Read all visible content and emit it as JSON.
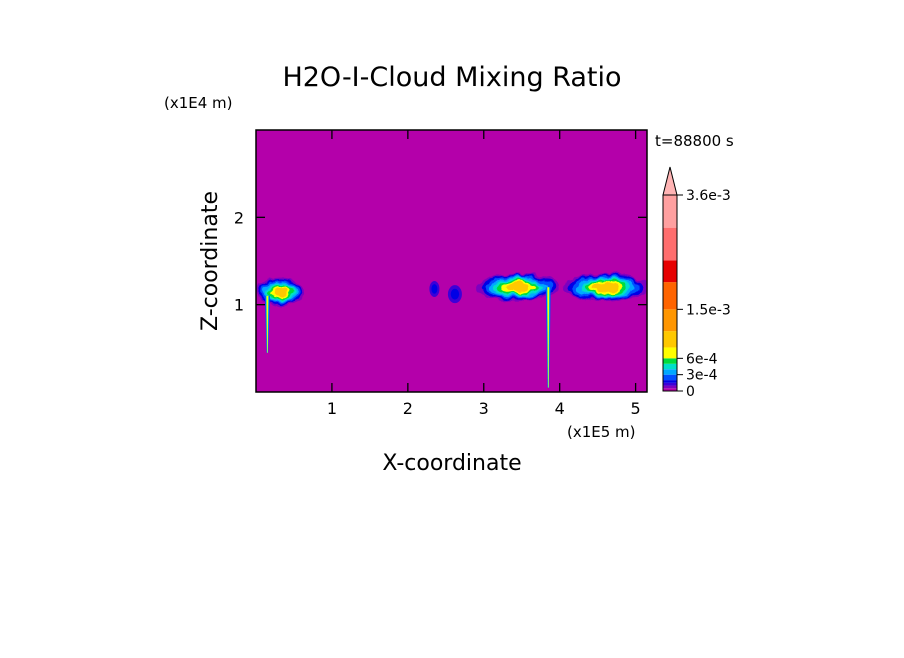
{
  "chart_data": {
    "type": "heatmap",
    "title": "H2O-I-Cloud Mixing Ratio",
    "xlabel": "X-coordinate",
    "ylabel": "Z-coordinate",
    "x_scale_label": "(x1E5 m)",
    "y_scale_label": "(x1E4 m)",
    "time_label": "t=88800 s",
    "xlim": [
      0,
      5.15
    ],
    "ylim": [
      0,
      3.0
    ],
    "x_ticks": [
      {
        "v": 1,
        "label": "1"
      },
      {
        "v": 2,
        "label": "2"
      },
      {
        "v": 3,
        "label": "3"
      },
      {
        "v": 4,
        "label": "4"
      },
      {
        "v": 5,
        "label": "5"
      }
    ],
    "y_ticks": [
      {
        "v": 1,
        "label": "1"
      },
      {
        "v": 2,
        "label": "2"
      }
    ],
    "background_color": "#b400aa",
    "colorbar": {
      "min": 0,
      "max": 0.0036,
      "ticks": [
        {
          "v": 0.0036,
          "label": "3.6e-3"
        },
        {
          "v": 0.0015,
          "label": "1.5e-3"
        },
        {
          "v": 0.0006,
          "label": "6e-4"
        },
        {
          "v": 0.0003,
          "label": "3e-4"
        },
        {
          "v": 0,
          "label": "0"
        }
      ],
      "levels": [
        {
          "from": 0,
          "to": 5e-05,
          "color": "#b400aa"
        },
        {
          "from": 5e-05,
          "to": 0.0001,
          "color": "#7d00c0"
        },
        {
          "from": 0.0001,
          "to": 0.00015,
          "color": "#3c00d8"
        },
        {
          "from": 0.00015,
          "to": 0.0002,
          "color": "#0000e6"
        },
        {
          "from": 0.0002,
          "to": 0.0003,
          "color": "#0050ff"
        },
        {
          "from": 0.0003,
          "to": 0.0004,
          "color": "#00a8ff"
        },
        {
          "from": 0.0004,
          "to": 0.0005,
          "color": "#00e0c8"
        },
        {
          "from": 0.0005,
          "to": 0.0006,
          "color": "#00dc3c"
        },
        {
          "from": 0.0006,
          "to": 0.0008,
          "color": "#ffff00"
        },
        {
          "from": 0.0008,
          "to": 0.0011,
          "color": "#ffc800"
        },
        {
          "from": 0.0011,
          "to": 0.0015,
          "color": "#ff9600"
        },
        {
          "from": 0.0015,
          "to": 0.002,
          "color": "#ff6400"
        },
        {
          "from": 0.002,
          "to": 0.0024,
          "color": "#e60000"
        },
        {
          "from": 0.0024,
          "to": 0.003,
          "color": "#ff6e6e"
        },
        {
          "from": 0.003,
          "to": 0.0036,
          "color": "#ffa0a0"
        }
      ],
      "over_color": "#ffb4b4"
    },
    "cloud_features": [
      {
        "name": "left-cloud",
        "x_range": [
          0,
          0.65
        ],
        "z_center": 1.15,
        "max_value": 0.0012
      },
      {
        "name": "small-eddy-1",
        "x_center": 2.35,
        "z_center": 1.18,
        "max_value": 0.0002
      },
      {
        "name": "small-eddy-2",
        "x_center": 2.62,
        "z_center": 1.12,
        "max_value": 0.0002
      },
      {
        "name": "central-cloud",
        "x_range": [
          2.9,
          4.0
        ],
        "z_center": 1.2,
        "max_value": 0.0012
      },
      {
        "name": "right-cloud",
        "x_range": [
          4.05,
          5.15
        ],
        "z_center": 1.2,
        "max_value": 0.0012
      },
      {
        "name": "left-precip-streak",
        "x_center": 0.15,
        "z_range": [
          0.45,
          1.1
        ],
        "max_value": 0.0008
      },
      {
        "name": "central-precip-streak",
        "x_center": 3.85,
        "z_range": [
          0.05,
          1.2
        ],
        "max_value": 0.0008
      }
    ]
  }
}
